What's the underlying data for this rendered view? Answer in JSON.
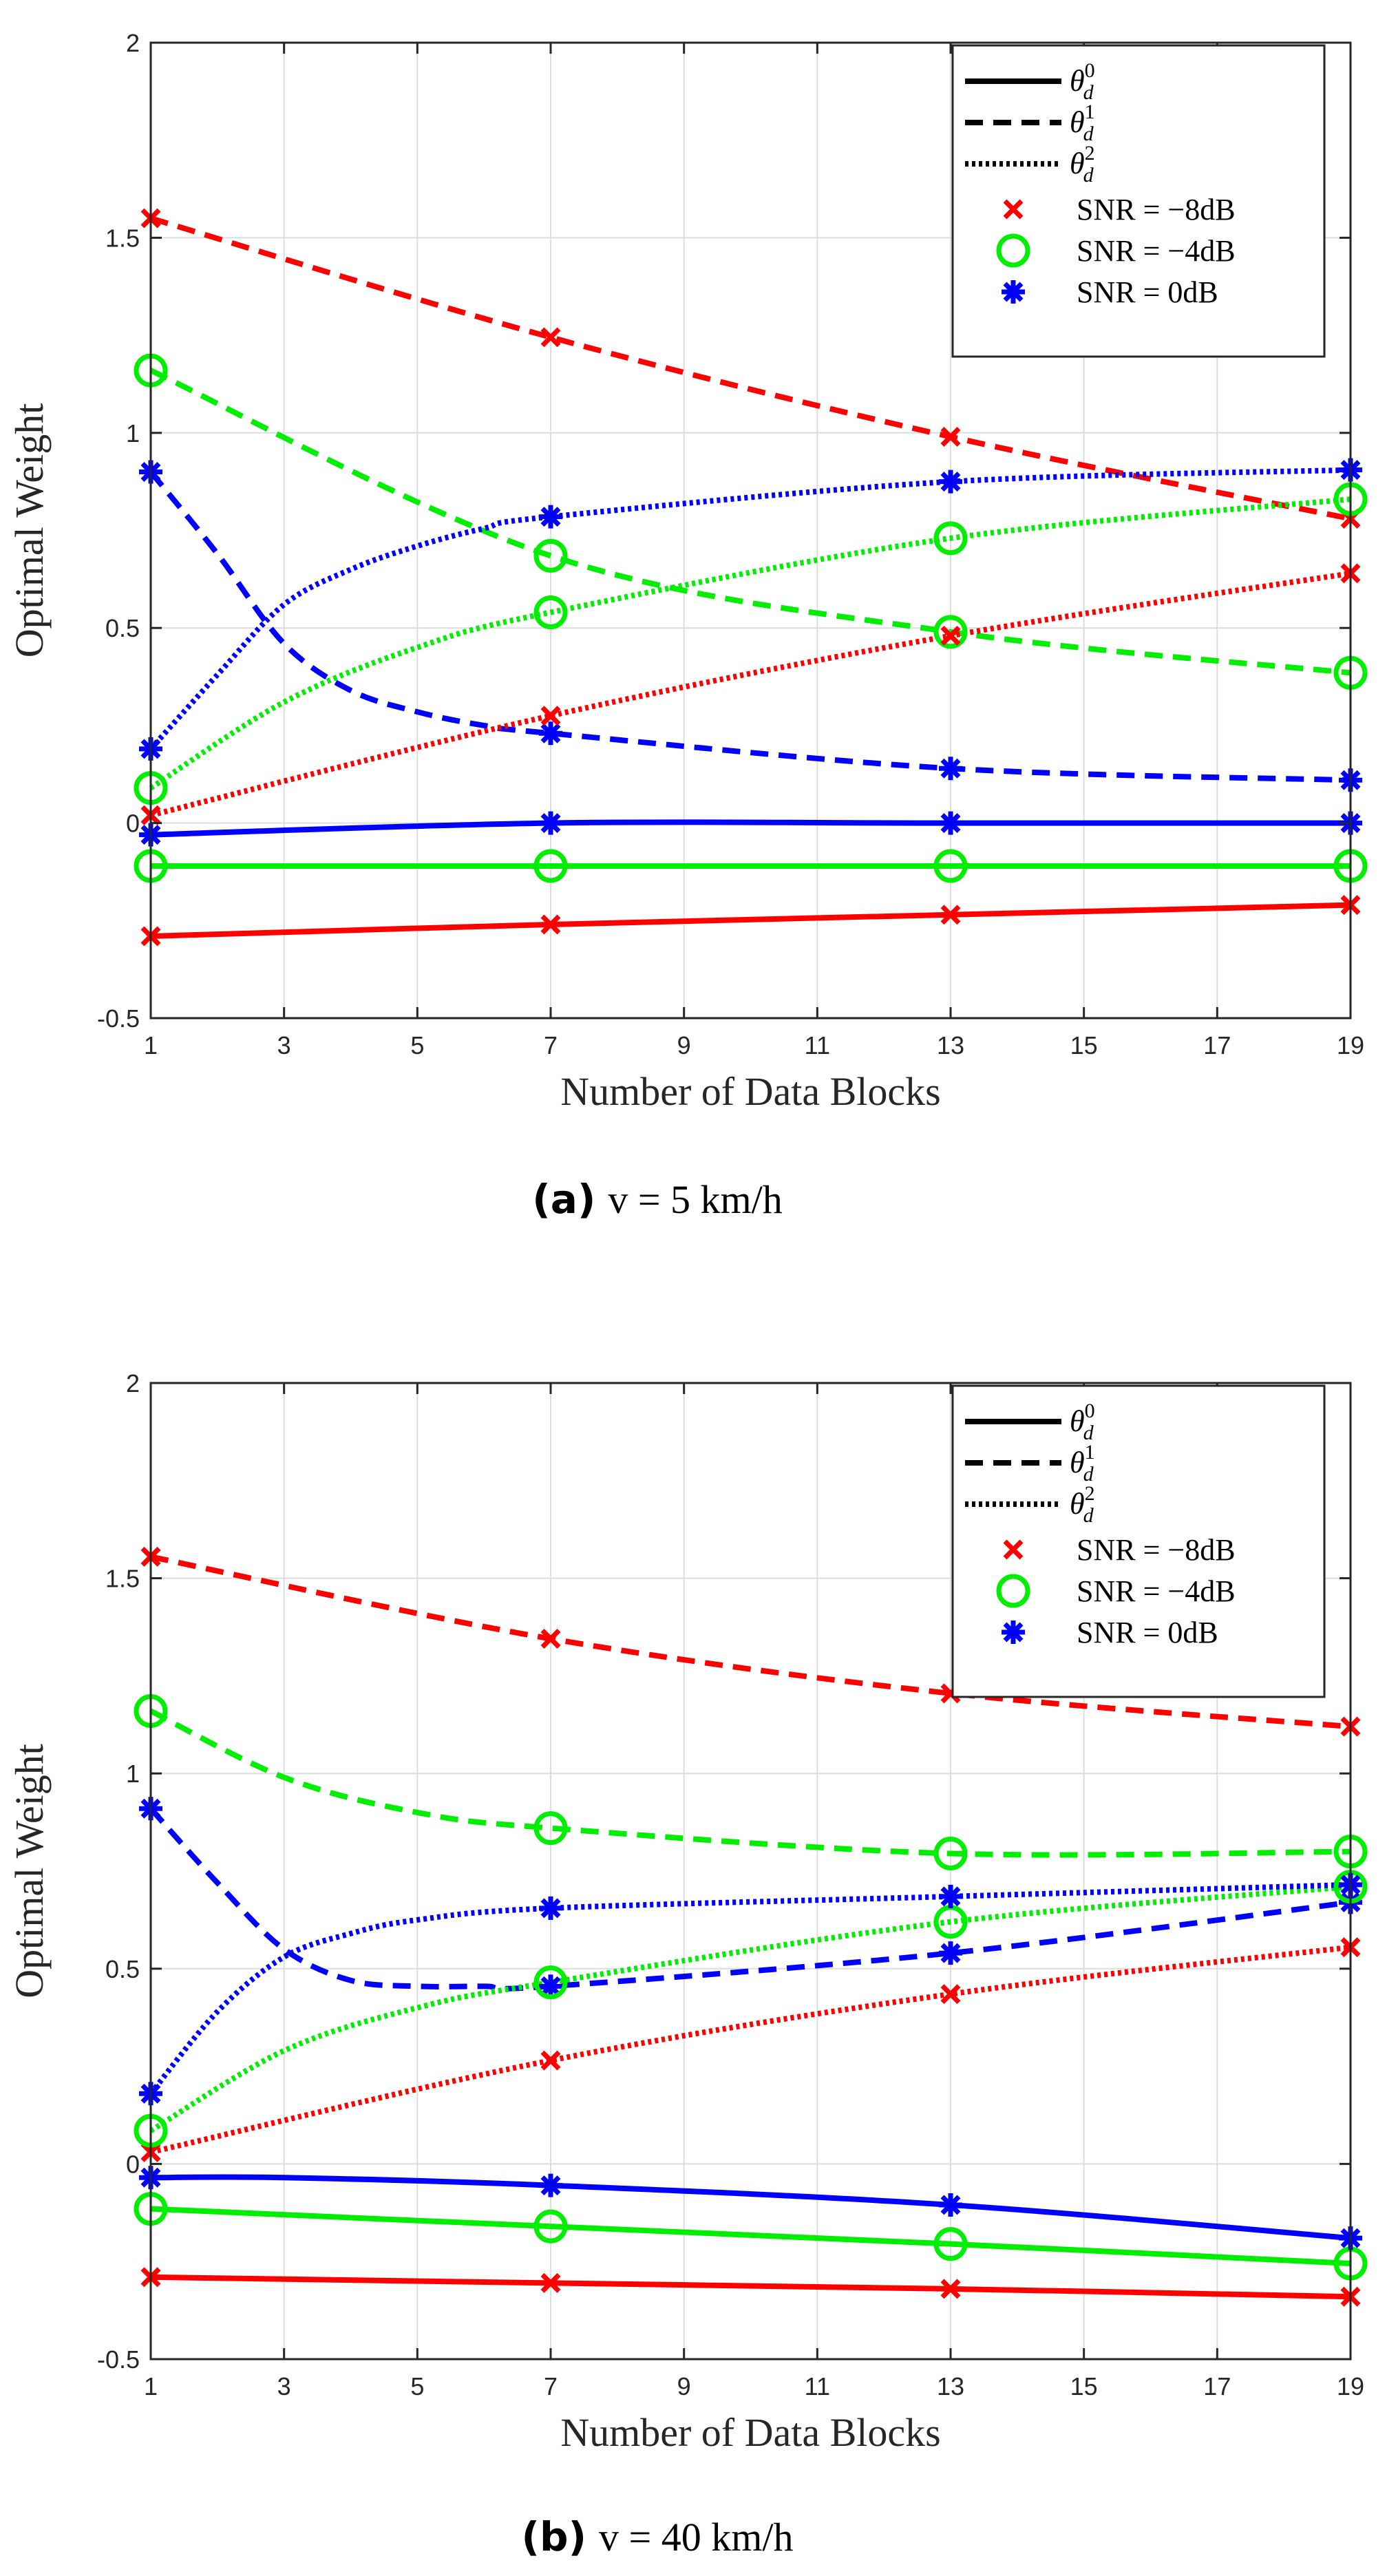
{
  "figure": {
    "panels": [
      {
        "caption_letter": "(a)",
        "caption_text": "v = 5 km/h"
      },
      {
        "caption_letter": "(b)",
        "caption_text": "v = 40 km/h"
      }
    ]
  },
  "chart_data": [
    {
      "type": "line",
      "title": "",
      "xlabel": "Number of Data Blocks",
      "ylabel": "Optimal Weight",
      "xlim": [
        1,
        19
      ],
      "ylim": [
        -0.5,
        2
      ],
      "xticks": [
        1,
        3,
        5,
        7,
        9,
        11,
        13,
        15,
        17,
        19
      ],
      "yticks": [
        -0.5,
        0,
        0.5,
        1,
        1.5,
        2
      ],
      "ytick_labels": [
        "-0.5",
        "0",
        "0.5",
        "1",
        "1.5",
        "2"
      ],
      "grid": true,
      "legend_position": "top-right",
      "legend": {
        "styles": [
          {
            "label": "θ_d^0",
            "base": "θ",
            "sub": "d",
            "sup": "0",
            "dash": "solid"
          },
          {
            "label": "θ_d^1",
            "base": "θ",
            "sub": "d",
            "sup": "1",
            "dash": "dashed"
          },
          {
            "label": "θ_d^2",
            "base": "θ",
            "sub": "d",
            "sup": "2",
            "dash": "dotted"
          }
        ],
        "markers": [
          {
            "label": "SNR = −8dB",
            "marker": "x",
            "color": "#ff0000"
          },
          {
            "label": "SNR = −4dB",
            "marker": "o",
            "color": "#00ee00"
          },
          {
            "label": "SNR = 0dB",
            "marker": "*",
            "color": "#0000ff"
          }
        ]
      },
      "series": [
        {
          "name": "θ_d^0, SNR = −8dB",
          "color": "#ff0000",
          "dash": "solid",
          "marker": "x",
          "x": [
            1,
            7,
            13,
            19
          ],
          "y": [
            -0.29,
            -0.26,
            -0.235,
            -0.21
          ]
        },
        {
          "name": "θ_d^0, SNR = −4dB",
          "color": "#00ee00",
          "dash": "solid",
          "marker": "o",
          "x": [
            1,
            7,
            13,
            19
          ],
          "y": [
            -0.11,
            -0.11,
            -0.11,
            -0.11
          ]
        },
        {
          "name": "θ_d^0, SNR = 0dB",
          "color": "#0000ff",
          "dash": "solid",
          "marker": "*",
          "x": [
            1,
            7,
            13,
            19
          ],
          "y": [
            -0.03,
            0.0,
            0.0,
            0.0
          ]
        },
        {
          "name": "θ_d^1, SNR = −8dB",
          "color": "#ff0000",
          "dash": "dashed",
          "marker": "x",
          "x": [
            1,
            7,
            13,
            19
          ],
          "y": [
            1.55,
            1.245,
            0.99,
            0.78
          ]
        },
        {
          "name": "θ_d^1, SNR = −4dB",
          "color": "#00ee00",
          "dash": "dashed",
          "marker": "o",
          "x": [
            1,
            7,
            13,
            19
          ],
          "y": [
            1.16,
            0.685,
            0.49,
            0.385
          ]
        },
        {
          "name": "θ_d^1, SNR = 0dB",
          "color": "#0000ff",
          "dash": "dashed",
          "marker": "*",
          "x": [
            1,
            2,
            3,
            4,
            5,
            6,
            7,
            13,
            19
          ],
          "y": [
            0.9,
            0.69,
            0.46,
            0.34,
            0.285,
            0.25,
            0.23,
            0.14,
            0.11
          ]
        },
        {
          "name": "θ_d^2, SNR = −8dB",
          "color": "#ff0000",
          "dash": "dotted",
          "marker": "x",
          "x": [
            1,
            7,
            13,
            19
          ],
          "y": [
            0.02,
            0.275,
            0.48,
            0.64
          ]
        },
        {
          "name": "θ_d^2, SNR = −4dB",
          "color": "#00ee00",
          "dash": "dotted",
          "marker": "o",
          "x": [
            1,
            3,
            5,
            7,
            13,
            19
          ],
          "y": [
            0.09,
            0.31,
            0.45,
            0.54,
            0.73,
            0.83
          ]
        },
        {
          "name": "θ_d^2, SNR = 0dB",
          "color": "#0000ff",
          "dash": "dotted",
          "marker": "*",
          "x": [
            1,
            2,
            3,
            4,
            5,
            6,
            7,
            13,
            19
          ],
          "y": [
            0.19,
            0.38,
            0.56,
            0.65,
            0.71,
            0.755,
            0.785,
            0.875,
            0.905
          ]
        }
      ]
    },
    {
      "type": "line",
      "title": "",
      "xlabel": "Number of Data Blocks",
      "ylabel": "Optimal Weight",
      "xlim": [
        1,
        19
      ],
      "ylim": [
        -0.5,
        2
      ],
      "xticks": [
        1,
        3,
        5,
        7,
        9,
        11,
        13,
        15,
        17,
        19
      ],
      "yticks": [
        -0.5,
        0,
        0.5,
        1,
        1.5,
        2
      ],
      "ytick_labels": [
        "-0.5",
        "0",
        "0.5",
        "1",
        "1.5",
        "2"
      ],
      "grid": true,
      "legend_position": "top-right",
      "legend": {
        "styles": [
          {
            "label": "θ_d^0",
            "base": "θ",
            "sub": "d",
            "sup": "0",
            "dash": "solid"
          },
          {
            "label": "θ_d^1",
            "base": "θ",
            "sub": "d",
            "sup": "1",
            "dash": "dashed"
          },
          {
            "label": "θ_d^2",
            "base": "θ",
            "sub": "d",
            "sup": "2",
            "dash": "dotted"
          }
        ],
        "markers": [
          {
            "label": "SNR = −8dB",
            "marker": "x",
            "color": "#ff0000"
          },
          {
            "label": "SNR = −4dB",
            "marker": "o",
            "color": "#00ee00"
          },
          {
            "label": "SNR = 0dB",
            "marker": "*",
            "color": "#0000ff"
          }
        ]
      },
      "series": [
        {
          "name": "θ_d^0, SNR = −8dB",
          "color": "#ff0000",
          "dash": "solid",
          "marker": "x",
          "x": [
            1,
            7,
            13,
            19
          ],
          "y": [
            -0.29,
            -0.305,
            -0.32,
            -0.34
          ]
        },
        {
          "name": "θ_d^0, SNR = −4dB",
          "color": "#00ee00",
          "dash": "solid",
          "marker": "o",
          "x": [
            1,
            7,
            13,
            19
          ],
          "y": [
            -0.115,
            -0.16,
            -0.205,
            -0.255
          ]
        },
        {
          "name": "θ_d^0, SNR = 0dB",
          "color": "#0000ff",
          "dash": "solid",
          "marker": "*",
          "x": [
            1,
            3,
            7,
            13,
            19
          ],
          "y": [
            -0.035,
            -0.035,
            -0.055,
            -0.105,
            -0.19
          ]
        },
        {
          "name": "θ_d^1, SNR = −8dB",
          "color": "#ff0000",
          "dash": "dashed",
          "marker": "x",
          "x": [
            1,
            7,
            13,
            19
          ],
          "y": [
            1.555,
            1.345,
            1.205,
            1.12
          ]
        },
        {
          "name": "θ_d^1, SNR = −4dB",
          "color": "#00ee00",
          "dash": "dashed",
          "marker": "o",
          "x": [
            1,
            3,
            5,
            7,
            13,
            19
          ],
          "y": [
            1.16,
            0.99,
            0.9,
            0.86,
            0.795,
            0.8
          ]
        },
        {
          "name": "θ_d^1, SNR = 0dB",
          "color": "#0000ff",
          "dash": "dashed",
          "marker": "*",
          "x": [
            1,
            2,
            3,
            4,
            5,
            6,
            7,
            13,
            19
          ],
          "y": [
            0.91,
            0.72,
            0.55,
            0.47,
            0.455,
            0.455,
            0.455,
            0.54,
            0.67
          ]
        },
        {
          "name": "θ_d^2, SNR = −8dB",
          "color": "#ff0000",
          "dash": "dotted",
          "marker": "x",
          "x": [
            1,
            7,
            13,
            19
          ],
          "y": [
            0.03,
            0.265,
            0.435,
            0.555
          ]
        },
        {
          "name": "θ_d^2, SNR = −4dB",
          "color": "#00ee00",
          "dash": "dotted",
          "marker": "o",
          "x": [
            1,
            3,
            5,
            7,
            13,
            19
          ],
          "y": [
            0.085,
            0.29,
            0.4,
            0.465,
            0.62,
            0.71
          ]
        },
        {
          "name": "θ_d^2, SNR = 0dB",
          "color": "#0000ff",
          "dash": "dotted",
          "marker": "*",
          "x": [
            1,
            2,
            3,
            4,
            5,
            7,
            13,
            19
          ],
          "y": [
            0.18,
            0.39,
            0.53,
            0.59,
            0.625,
            0.655,
            0.685,
            0.715
          ]
        }
      ]
    }
  ]
}
